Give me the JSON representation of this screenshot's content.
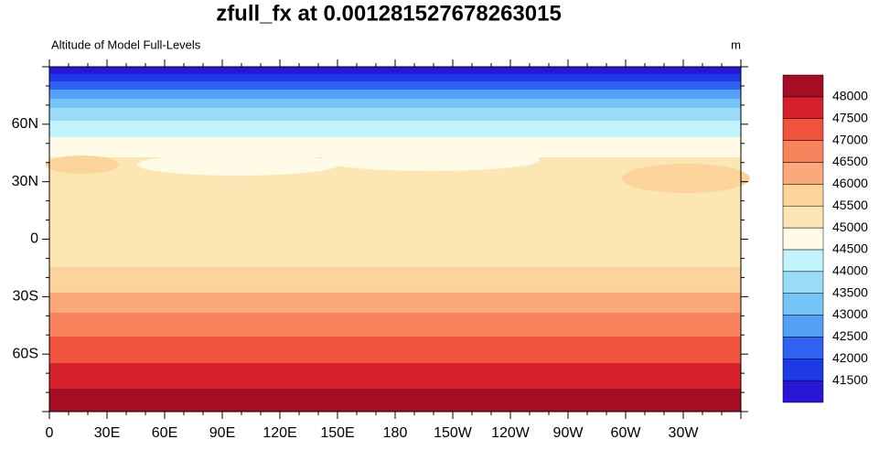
{
  "title": "zfull_fx at 0.001281527678263015",
  "left_label": "Altitude of Model Full-Levels",
  "units": "m",
  "x_labels": [
    "0",
    "30E",
    "60E",
    "90E",
    "120E",
    "150E",
    "180",
    "150W",
    "120W",
    "90W",
    "60W",
    "30W"
  ],
  "y_labels": [
    "60N",
    "30N",
    "0",
    "30S",
    "60S"
  ],
  "colorbar": {
    "levels": [
      41500,
      42000,
      42500,
      43000,
      43500,
      44000,
      44500,
      45000,
      45500,
      46000,
      46500,
      47000,
      47500,
      48000
    ],
    "colors": [
      "#2a17d6",
      "#1c3ae6",
      "#2f62f0",
      "#54a0f6",
      "#74c4f6",
      "#9adcf8",
      "#c0f3fb",
      "#fffbe6",
      "#fbe6b4",
      "#fcd39a",
      "#fba97a",
      "#f7845c",
      "#ef523d",
      "#d6202c",
      "#a50d22"
    ]
  }
}
